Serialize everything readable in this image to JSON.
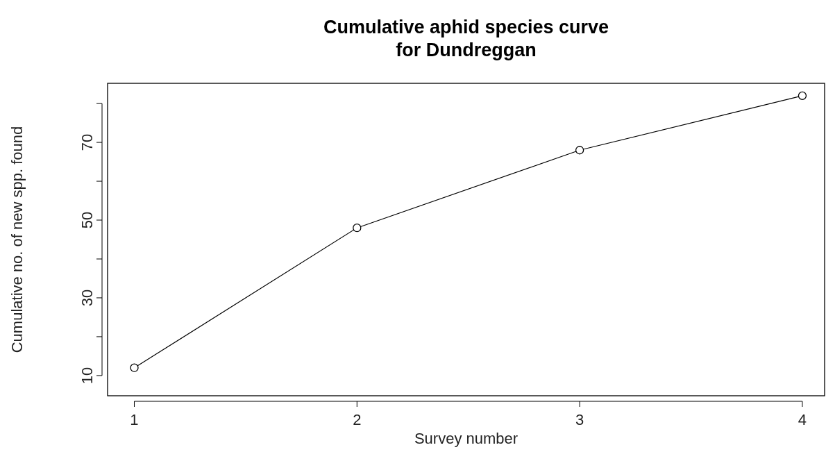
{
  "chart_data": {
    "type": "line",
    "title": "Cumulative aphid species curve\nfor Dundreggan",
    "xlabel": "Survey number",
    "ylabel": "Cumulative no. of new spp. found",
    "x": [
      1,
      2,
      3,
      4
    ],
    "series": [
      {
        "color": "#000000",
        "values": [
          12,
          48,
          68,
          82
        ]
      }
    ],
    "xlim": [
      0.88,
      4.1
    ],
    "xticks": [
      1,
      2,
      3,
      4
    ],
    "ylim": [
      4.8,
      85.2
    ],
    "yticks": [
      10,
      {
        "value": 20,
        "label": null
      },
      30,
      {
        "value": 40,
        "label": null
      },
      50,
      {
        "value": 60,
        "label": null
      },
      70,
      {
        "value": 80,
        "label": null
      }
    ],
    "marker": "circle",
    "line_style": "solid"
  }
}
